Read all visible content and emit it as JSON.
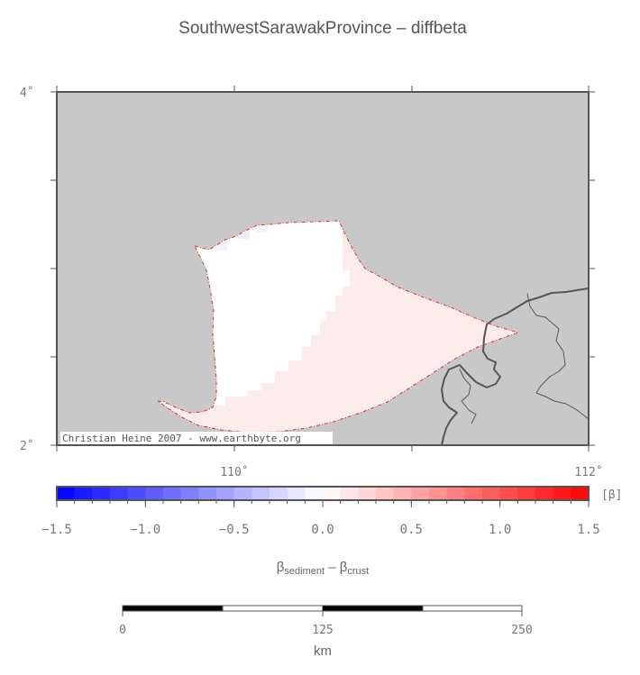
{
  "title": "SouthwestSarawakProvince – diffbeta",
  "map": {
    "lat_labels": [
      {
        "value": 4,
        "text": "4˚"
      },
      {
        "value": 2,
        "text": "2˚"
      }
    ],
    "lon_labels": [
      {
        "value": 110,
        "text": "110˚"
      },
      {
        "value": 112,
        "text": "112˚"
      }
    ],
    "credit": "Christian Heine 2007 - www.earthbyte.org",
    "colors": {
      "background": "#c8c8c8",
      "region_low": "#ffffff",
      "region_high": "#fdecec",
      "outline": "#e03030",
      "coastline": "#555555"
    }
  },
  "colorbar": {
    "unit": "[β]",
    "range": [
      -1.5,
      1.5
    ],
    "tick_labels": [
      "−1.5",
      "−1.0",
      "−0.5",
      "0.0",
      "0.5",
      "1.0",
      "1.5"
    ],
    "label_main": "β",
    "label_sub1": "sediment",
    "label_mid": " – β",
    "label_sub2": "crust",
    "low_color": "#0000ff",
    "mid_color": "#ffffff",
    "high_color": "#ff0000"
  },
  "scalebar": {
    "tick_labels": [
      "0",
      "125",
      "250"
    ],
    "unit": "km"
  }
}
